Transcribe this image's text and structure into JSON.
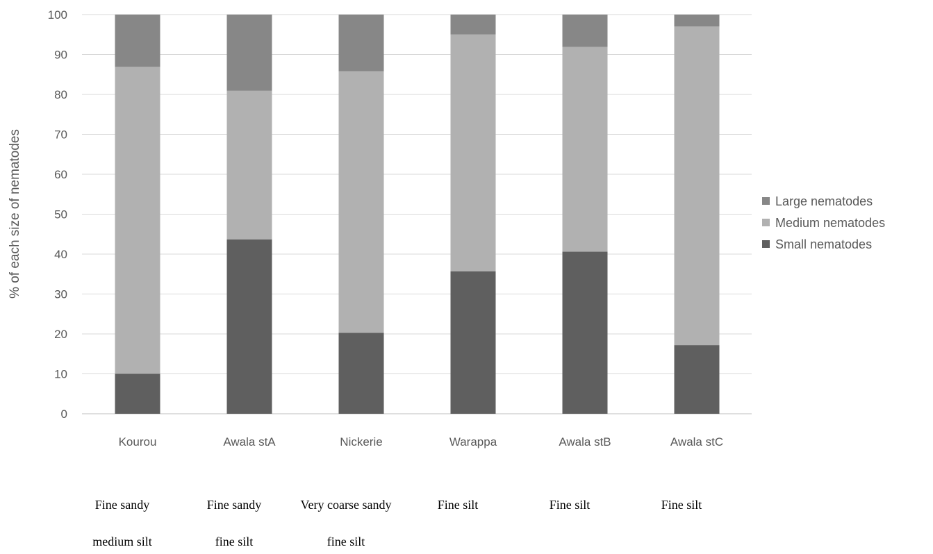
{
  "chart_data": {
    "type": "bar",
    "stacked": true,
    "title": "",
    "xlabel": "",
    "ylabel": "% of  each size of nematodes",
    "ylim": [
      0,
      100
    ],
    "yticks": [
      0,
      10,
      20,
      30,
      40,
      50,
      60,
      70,
      80,
      90,
      100
    ],
    "grid": true,
    "legend_position": "right",
    "categories": [
      "Kourou",
      "Awala stA",
      "Nickerie",
      "Warappa",
      "Awala stB",
      "Awala stC"
    ],
    "series": [
      {
        "name": "Small nematodes",
        "color": "#5f5f5f",
        "values": [
          10,
          43.7,
          20.3,
          35.7,
          40.6,
          17.2
        ]
      },
      {
        "name": "Medium nematodes",
        "color": "#b1b1b1",
        "values": [
          76.9,
          37.2,
          65.5,
          59.3,
          51.3,
          79.8
        ]
      },
      {
        "name": "Large nematodes",
        "color": "#878787",
        "values": [
          13.1,
          19.1,
          14.2,
          5.0,
          8.1,
          3.0
        ]
      }
    ],
    "legend_order": [
      "Large nematodes",
      "Medium nematodes",
      "Small nematodes"
    ],
    "annotations": {
      "soil_types": [
        {
          "category": "Kourou",
          "lines": [
            "Fine sandy",
            "medium silt"
          ]
        },
        {
          "category": "Awala stA",
          "lines": [
            "Fine sandy",
            "fine silt"
          ]
        },
        {
          "category": "Nickerie",
          "lines": [
            "Very coarse sandy",
            "fine silt"
          ]
        },
        {
          "category": "Warappa",
          "lines": [
            "Fine silt"
          ]
        },
        {
          "category": "Awala stB",
          "lines": [
            "Fine silt"
          ]
        },
        {
          "category": "Awala stC",
          "lines": [
            "Fine silt"
          ]
        }
      ]
    }
  }
}
